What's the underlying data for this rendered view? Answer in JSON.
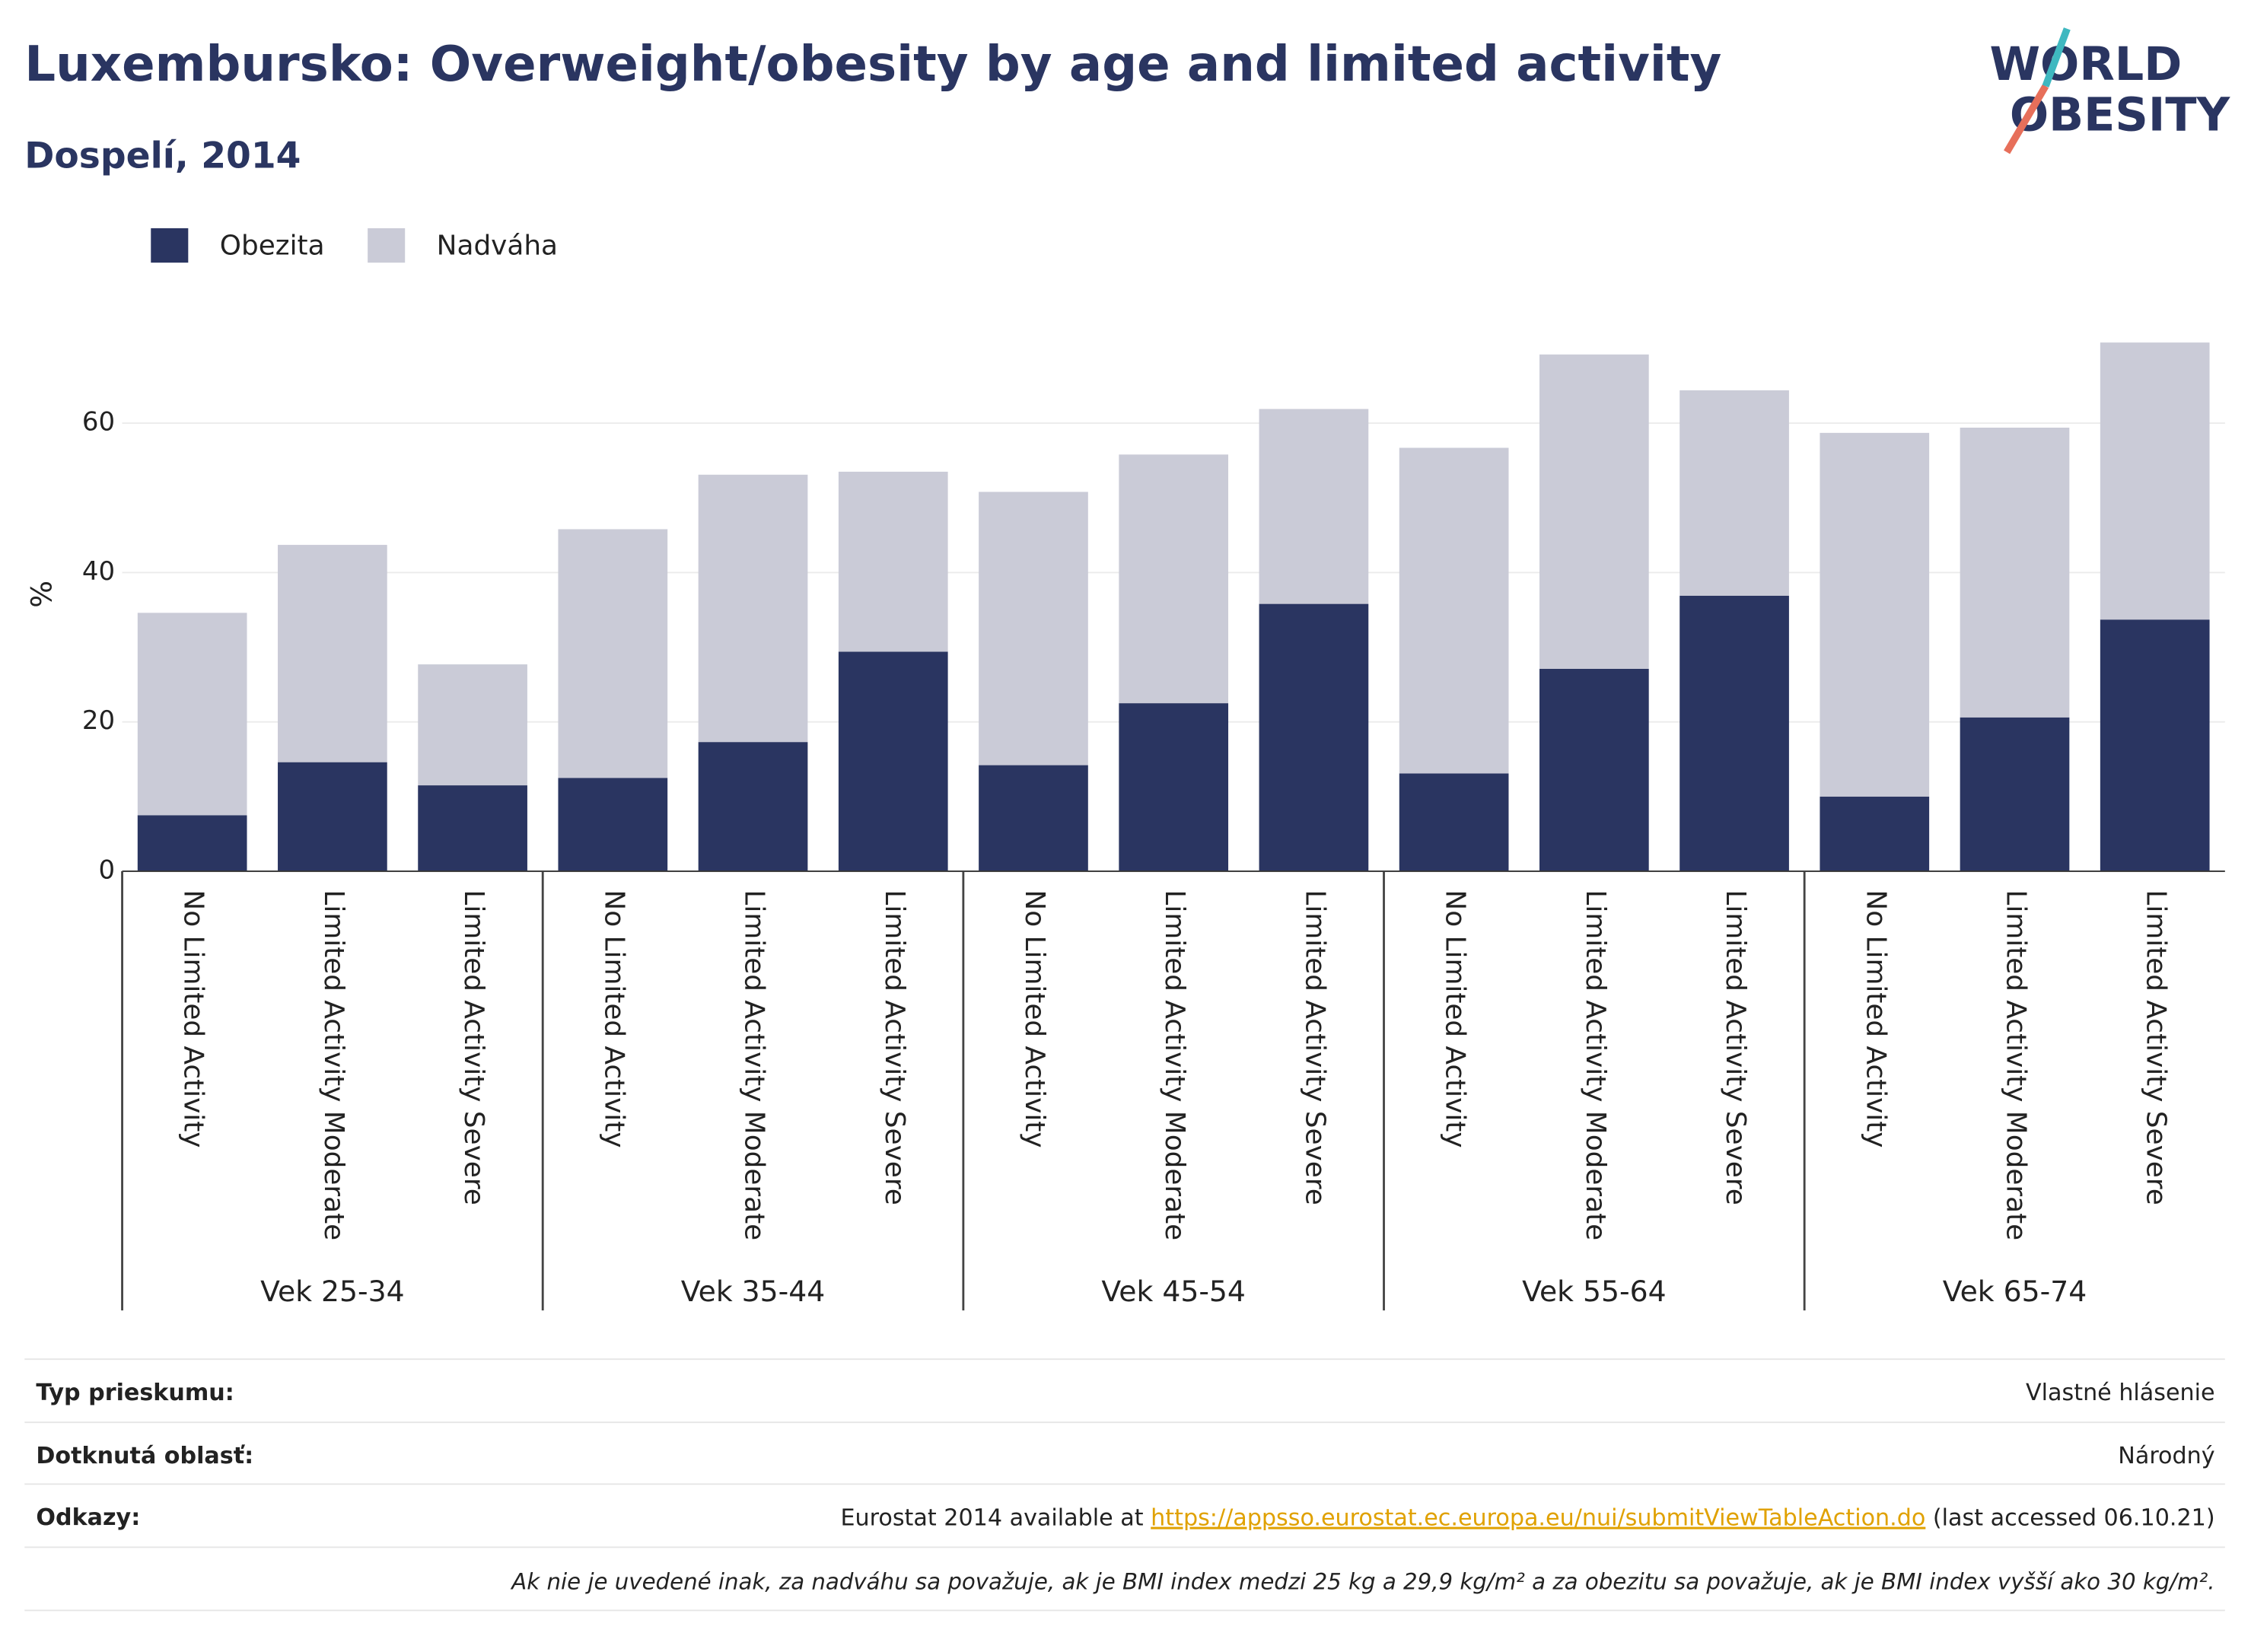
{
  "chart_data": {
    "type": "stacked_bar",
    "title": "Luxembursko: Overweight/obesity by age and limited activity",
    "subtitle": "Dospelí, 2014",
    "ylabel": "%",
    "categories": [
      "No Limited Activity",
      "Limited Activity Moderate",
      "Limited Activity Severe",
      "No Limited Activity",
      "Limited Activity Moderate",
      "Limited Activity Severe",
      "No Limited Activity",
      "Limited Activity Moderate",
      "Limited Activity Severe",
      "No Limited Activity",
      "Limited Activity Moderate",
      "Limited Activity Severe",
      "No Limited Activity",
      "Limited Activity Moderate",
      "Limited Activity Severe"
    ],
    "groups": [
      "Vek 25-34",
      "Vek 35-44",
      "Vek 45-54",
      "Vek 55-64",
      "Vek 65-74"
    ],
    "series": [
      {
        "name": "Obezita",
        "color": "#2a3561",
        "values": [
          7.5,
          14.6,
          11.5,
          12.5,
          17.3,
          29.4,
          14.2,
          22.5,
          35.8,
          13.1,
          27.1,
          36.9,
          10.0,
          20.6,
          33.7
        ]
      },
      {
        "name": "Nadváha",
        "color": "#cacbd7",
        "values": [
          27.1,
          29.1,
          16.2,
          33.3,
          35.8,
          24.1,
          36.6,
          33.3,
          26.1,
          43.6,
          42.1,
          27.5,
          48.7,
          38.8,
          37.1
        ]
      }
    ],
    "ylim": [
      0,
      74
    ],
    "yticks": [
      0,
      20,
      40,
      60
    ],
    "grid": true,
    "legend": "top-left"
  },
  "logo": [
    "WORLD",
    "OBESITY"
  ],
  "footer": {
    "rows": [
      {
        "label": "Typ prieskumu:",
        "value": "Vlastné hlásenie"
      },
      {
        "label": "Dotknutá oblasť:",
        "value": "Národný"
      }
    ],
    "references": {
      "label": "Odkazy:",
      "before": "Eurostat 2014 available at ",
      "link": "https://appsso.eurostat.ec.europa.eu/nui/submitViewTableAction.do",
      "after": " (last accessed 06.10.21)"
    },
    "note": "Ak nie je uvedené inak, za nadváhu sa považuje, ak je BMI index medzi 25 kg a 29,9 kg/m² a za obezitu sa považuje, ak je BMI index vyšší ako 30 kg/m²."
  }
}
